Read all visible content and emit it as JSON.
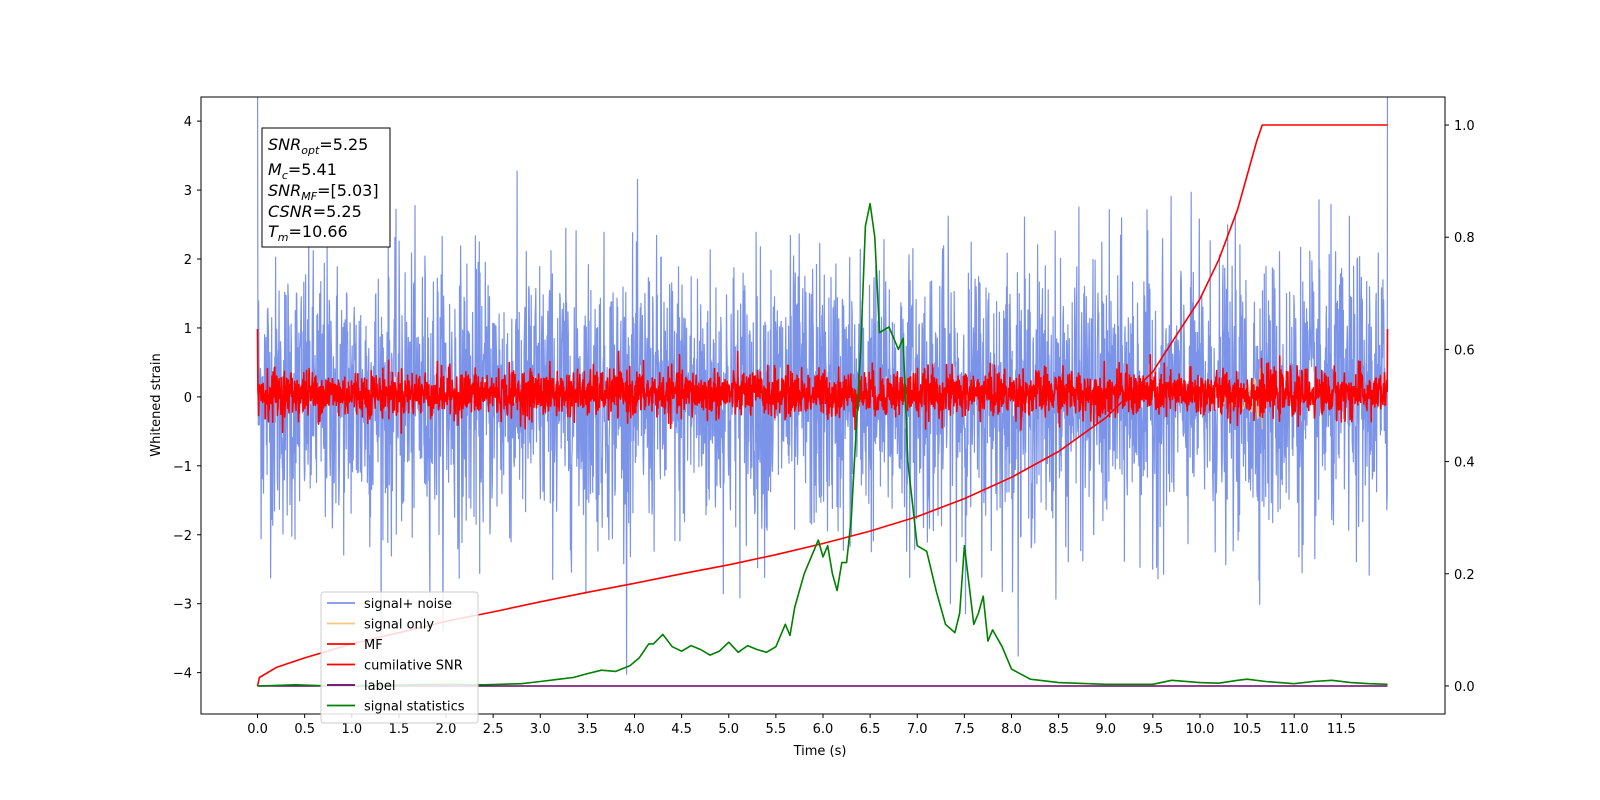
{
  "chart_data": {
    "type": "line",
    "xlabel": "Time (s)",
    "ylabel": "Whitened strain",
    "xlim": [
      -0.6,
      12.6
    ],
    "ylim": [
      -4.6,
      4.35
    ],
    "ylim_right": [
      -0.05,
      1.05
    ],
    "xticks": [
      "0.0",
      "0.5",
      "1.0",
      "1.5",
      "2.0",
      "2.5",
      "3.0",
      "3.5",
      "4.0",
      "4.5",
      "5.0",
      "5.5",
      "6.0",
      "6.5",
      "7.0",
      "7.5",
      "8.0",
      "8.5",
      "9.0",
      "9.5",
      "10.0",
      "10.5",
      "11.0",
      "11.5"
    ],
    "xtick_values": [
      0,
      0.5,
      1,
      1.5,
      2,
      2.5,
      3,
      3.5,
      4,
      4.5,
      5,
      5.5,
      6,
      6.5,
      7,
      7.5,
      8,
      8.5,
      9,
      9.5,
      10,
      10.5,
      11,
      11.5
    ],
    "yticks_left": [
      "4",
      "3",
      "2",
      "1",
      "0",
      "−1",
      "−2",
      "−3",
      "−4"
    ],
    "ytick_values_left": [
      4,
      3,
      2,
      1,
      0,
      -1,
      -2,
      -3,
      -4
    ],
    "yticks_right": [
      "1.0",
      "0.8",
      "0.6",
      "0.4",
      "0.2",
      "0.0"
    ],
    "ytick_values_right": [
      1.0,
      0.8,
      0.6,
      0.4,
      0.2,
      0.0
    ],
    "annotation": {
      "snr_opt": {
        "base": "SNR",
        "sub": "opt",
        "value": "=5.25"
      },
      "mc": {
        "base": "M",
        "sub": "c",
        "value": "=5.41"
      },
      "snr_mf": {
        "base": "SNR",
        "sub": "MF",
        "value": "=[5.03]"
      },
      "csnr": {
        "base": "CSNR",
        "value": "=5.25"
      },
      "tm": {
        "base": "T",
        "sub": "m",
        "value": "=10.66"
      }
    },
    "legend": {
      "placement": "lower-left",
      "entries": [
        {
          "name": "signal+ noise",
          "color": "#7b93e8"
        },
        {
          "name": "signal only",
          "color": "#f5c77e"
        },
        {
          "name": "MF",
          "color": "#ff0000"
        },
        {
          "name": "cumilative SNR",
          "color": "#ff0000"
        },
        {
          "name": "label",
          "color": "#6a006a"
        },
        {
          "name": "signal statistics",
          "color": "#008000"
        }
      ]
    },
    "series": [
      {
        "name": "signal+ noise",
        "axis": "left",
        "kind": "noise",
        "t_range": [
          0,
          11.99
        ],
        "sigma": 1.0,
        "color": "#7b93e8"
      },
      {
        "name": "signal only",
        "axis": "left",
        "kind": "chirp",
        "t_range": [
          9.8,
          10.66
        ],
        "color": "#f5c77e"
      },
      {
        "name": "MF",
        "axis": "left",
        "kind": "noise",
        "t_range": [
          0,
          11.99
        ],
        "sigma": 0.17,
        "offset": 0.05,
        "color": "#ff0000"
      },
      {
        "name": "cumilative SNR",
        "axis": "right",
        "color": "#ff0000",
        "x": [
          0,
          0.02,
          0.2,
          0.5,
          1.0,
          1.5,
          2.0,
          2.5,
          3.0,
          3.5,
          4.0,
          4.5,
          5.0,
          5.5,
          6.0,
          6.5,
          7.0,
          7.5,
          8.0,
          8.5,
          9.0,
          9.5,
          10.0,
          10.2,
          10.4,
          10.5,
          10.6,
          10.66,
          11.99
        ],
        "y": [
          0.0,
          0.015,
          0.033,
          0.05,
          0.075,
          0.095,
          0.115,
          0.132,
          0.15,
          0.167,
          0.183,
          0.2,
          0.216,
          0.234,
          0.254,
          0.276,
          0.302,
          0.334,
          0.372,
          0.418,
          0.478,
          0.56,
          0.69,
          0.76,
          0.85,
          0.91,
          0.97,
          1.0,
          1.0
        ]
      },
      {
        "name": "label",
        "axis": "right",
        "color": "#6a006a",
        "x": [
          0,
          11.99
        ],
        "y": [
          0.0,
          0.0
        ]
      },
      {
        "name": "signal statistics",
        "axis": "right",
        "color": "#008000",
        "x": [
          0,
          0.4,
          0.8,
          1.2,
          1.6,
          2.0,
          2.4,
          2.8,
          3.0,
          3.2,
          3.35,
          3.5,
          3.65,
          3.8,
          3.95,
          4.05,
          4.15,
          4.2,
          4.3,
          4.4,
          4.5,
          4.6,
          4.7,
          4.8,
          4.9,
          5.0,
          5.1,
          5.2,
          5.3,
          5.4,
          5.5,
          5.6,
          5.65,
          5.7,
          5.8,
          5.9,
          5.95,
          6.0,
          6.05,
          6.1,
          6.15,
          6.2,
          6.25,
          6.3,
          6.35,
          6.4,
          6.45,
          6.5,
          6.55,
          6.6,
          6.7,
          6.8,
          6.85,
          6.9,
          7.0,
          7.1,
          7.2,
          7.3,
          7.4,
          7.45,
          7.5,
          7.55,
          7.6,
          7.65,
          7.7,
          7.75,
          7.8,
          7.9,
          8.0,
          8.2,
          8.5,
          9.0,
          9.5,
          9.7,
          10.0,
          10.2,
          10.4,
          10.5,
          10.7,
          11.0,
          11.2,
          11.4,
          11.6,
          11.8,
          11.99
        ],
        "y": [
          0.0,
          0.002,
          0.0,
          0.001,
          0.002,
          0.003,
          0.002,
          0.004,
          0.008,
          0.012,
          0.015,
          0.022,
          0.028,
          0.026,
          0.036,
          0.05,
          0.075,
          0.075,
          0.092,
          0.07,
          0.062,
          0.072,
          0.065,
          0.055,
          0.062,
          0.078,
          0.06,
          0.072,
          0.065,
          0.06,
          0.07,
          0.11,
          0.09,
          0.14,
          0.2,
          0.24,
          0.26,
          0.23,
          0.25,
          0.2,
          0.17,
          0.22,
          0.22,
          0.3,
          0.45,
          0.6,
          0.82,
          0.86,
          0.8,
          0.63,
          0.64,
          0.6,
          0.62,
          0.4,
          0.25,
          0.24,
          0.17,
          0.11,
          0.095,
          0.13,
          0.25,
          0.18,
          0.11,
          0.13,
          0.16,
          0.08,
          0.1,
          0.07,
          0.03,
          0.012,
          0.006,
          0.003,
          0.003,
          0.01,
          0.006,
          0.005,
          0.01,
          0.012,
          0.008,
          0.004,
          0.008,
          0.01,
          0.006,
          0.004,
          0.003
        ]
      }
    ]
  }
}
